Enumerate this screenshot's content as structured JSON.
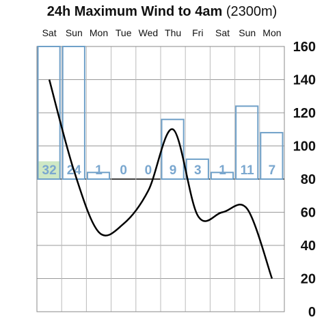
{
  "title": {
    "main": "24h Maximum Wind to 4am",
    "sub": "(2300m)"
  },
  "colors": {
    "bar_stroke": "#6fa0c8",
    "bar_label": "#7aa7cf",
    "highlight_fill": "#cfe8c5",
    "line": "#000000",
    "grid": "#999999",
    "axis_text": "#111111"
  },
  "chart_data": {
    "type": "bar+line",
    "title": "24h Maximum Wind to 4am (2300m)",
    "categories": [
      "Sat",
      "Sun",
      "Mon",
      "Tue",
      "Wed",
      "Thu",
      "Fri",
      "Sat",
      "Sun",
      "Mon"
    ],
    "y_axis": {
      "position": "right",
      "ylim": [
        0,
        160
      ],
      "ticks": [
        0,
        20,
        40,
        60,
        80,
        100,
        120,
        140,
        160
      ]
    },
    "bars": {
      "baseline": 80,
      "values": [
        160,
        160,
        84,
        80,
        80,
        116,
        92,
        84,
        124,
        108
      ],
      "labels": [
        "32",
        "24",
        "1",
        "0",
        "0",
        "9",
        "3",
        "1",
        "11",
        "7"
      ],
      "highlight_index": 0
    },
    "line": {
      "x": [
        0.5,
        1.5,
        2.5,
        3.5,
        4.5,
        5.5,
        6.5,
        7.5,
        8.5,
        9.5
      ],
      "values": [
        140,
        85,
        48,
        53,
        73,
        110,
        58,
        60,
        62,
        20
      ]
    },
    "grid": true
  }
}
